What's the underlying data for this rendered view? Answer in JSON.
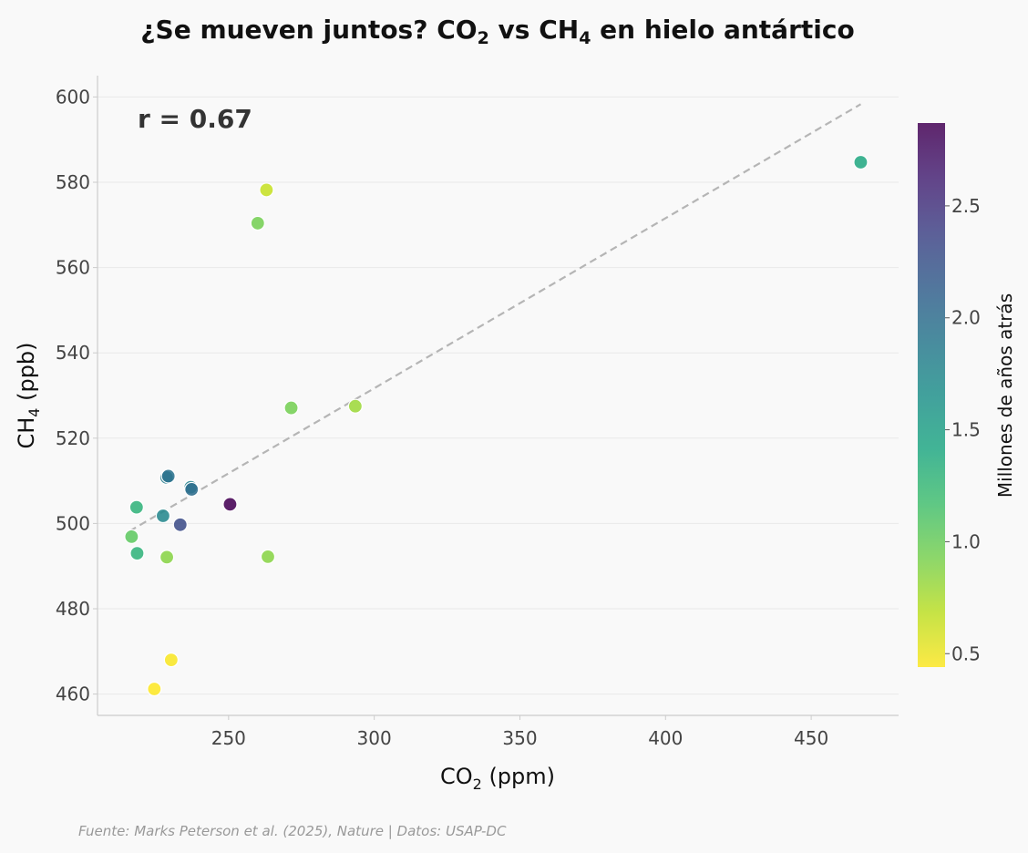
{
  "chart_data": {
    "type": "scatter",
    "title": {
      "prefix": "¿Se mueven juntos? CO",
      "sub1": "2",
      "mid": " vs CH",
      "sub2": "4",
      "suffix": " en hielo antártico"
    },
    "xlabel": {
      "base": "CO",
      "sub": "2",
      "suffix": " (ppm)"
    },
    "ylabel": {
      "base": "CH",
      "sub": "4",
      "suffix": " (ppb)"
    },
    "xlim": [
      205,
      480
    ],
    "ylim": [
      455,
      605
    ],
    "xticks": [
      250,
      300,
      350,
      400,
      450
    ],
    "yticks": [
      460,
      480,
      500,
      520,
      540,
      560,
      580,
      600
    ],
    "grid": "horizontal",
    "colorbar": {
      "label": "Millones de años atrás",
      "range": [
        0.44,
        2.87
      ],
      "ticks": [
        0.5,
        1.0,
        1.5,
        2.0,
        2.5
      ],
      "tick_labels": [
        "0.5",
        "1.0",
        "1.5",
        "2.0",
        "2.5"
      ],
      "colormap": "viridis"
    },
    "points": [
      {
        "x": 224.5,
        "y": 461.2,
        "age": 0.44
      },
      {
        "x": 230.3,
        "y": 468.0,
        "age": 0.46
      },
      {
        "x": 263.0,
        "y": 578.2,
        "age": 0.65
      },
      {
        "x": 293.5,
        "y": 527.5,
        "age": 0.8
      },
      {
        "x": 228.8,
        "y": 492.1,
        "age": 0.87
      },
      {
        "x": 263.5,
        "y": 492.2,
        "age": 0.87
      },
      {
        "x": 260.0,
        "y": 570.4,
        "age": 0.95
      },
      {
        "x": 271.5,
        "y": 527.1,
        "age": 0.95
      },
      {
        "x": 216.7,
        "y": 496.9,
        "age": 1.05
      },
      {
        "x": 218.6,
        "y": 493.0,
        "age": 1.3
      },
      {
        "x": 218.4,
        "y": 503.8,
        "age": 1.3
      },
      {
        "x": 467.0,
        "y": 584.7,
        "age": 1.4
      },
      {
        "x": 227.5,
        "y": 501.8,
        "age": 1.75
      },
      {
        "x": 237.0,
        "y": 508.5,
        "age": 1.8
      },
      {
        "x": 228.7,
        "y": 510.8,
        "age": 1.85
      },
      {
        "x": 229.3,
        "y": 511.1,
        "age": 1.95
      },
      {
        "x": 237.3,
        "y": 508.0,
        "age": 2.0
      },
      {
        "x": 233.4,
        "y": 499.7,
        "age": 2.3
      },
      {
        "x": 250.5,
        "y": 504.5,
        "age": 2.87
      }
    ],
    "trendline": {
      "x": [
        216.0,
        467.0
      ],
      "y": [
        498.2,
        598.3
      ],
      "style": "dashed",
      "color": "#b5b5b5"
    },
    "annotation": "r = 0.67"
  },
  "source_note": "Fuente: Marks Peterson et al. (2025), Nature | Datos: USAP-DC",
  "colors": {
    "background": "#f9f9f9",
    "grid": "#e9e9e9",
    "axis": "#cccccc",
    "point_edge": "#ffffff"
  }
}
